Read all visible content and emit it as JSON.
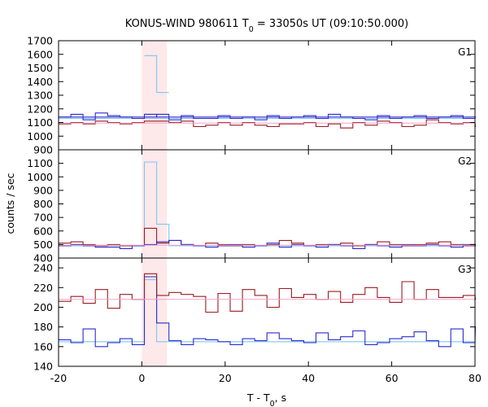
{
  "chart_data": {
    "type": "line",
    "title": "KONUS-WIND 980611 T",
    "title_sub": "0",
    "title_rest": " = 33050s UT (09:10:50.000)",
    "xlabel": "T - T",
    "xlabel_sub": "0",
    "xlabel_rest": ", s",
    "ylabel": "counts / sec",
    "xlim": [
      -20,
      80
    ],
    "x_ticks": [
      -20,
      0,
      20,
      40,
      60,
      80
    ],
    "bin_width": 2.944,
    "highlight": {
      "start": 0,
      "end": 6
    },
    "colors": {
      "dark_red": "#9b1b22",
      "blue": "#2b2bd0",
      "light_blue": "#7fc8ee",
      "pink": "#f7a1c4",
      "highlight": "#fde8ea"
    },
    "panels": [
      {
        "label": "G1",
        "ylim": [
          900,
          1700
        ],
        "y_ticks": [
          900,
          1000,
          1100,
          1200,
          1300,
          1400,
          1500,
          1600,
          1700
        ],
        "series": [
          {
            "color": "light_blue",
            "values": [
              1130,
              1130,
              1130,
              1130,
              1130,
              1130,
              1130,
              1130,
              1130,
              1130,
              1130,
              1130,
              1130,
              1130,
              1130,
              1130,
              1130,
              1130,
              1130,
              1130,
              1130,
              1130,
              1130,
              1130,
              1130,
              1130,
              1130,
              1130,
              1130,
              1130,
              1130,
              1130,
              1130,
              1130,
              1130
            ]
          },
          {
            "color": "blue",
            "values": [
              1140,
              1160,
              1120,
              1170,
              1150,
              1140,
              1130,
              1160,
              1140,
              1120,
              1140,
              1130,
              1130,
              1150,
              1130,
              1140,
              1120,
              1150,
              1130,
              1140,
              1150,
              1130,
              1160,
              1140,
              1130,
              1120,
              1150,
              1130,
              1140,
              1150,
              1130,
              1140,
              1150,
              1130,
              1140
            ]
          },
          {
            "color": "dark_red",
            "values": [
              1090,
              1100,
              1090,
              1110,
              1100,
              1090,
              1100,
              1110,
              1110,
              1100,
              1110,
              1070,
              1080,
              1100,
              1080,
              1100,
              1080,
              1070,
              1090,
              1090,
              1100,
              1070,
              1090,
              1060,
              1100,
              1080,
              1110,
              1100,
              1070,
              1080,
              1120,
              1100,
              1090,
              1100,
              1070
            ]
          },
          {
            "color": "blue",
            "values": [
              1140,
              1140,
              1140,
              1140,
              1140,
              1140,
              1140,
              1140,
              1160,
              1140,
              1150,
              1140,
              1140,
              1140,
              1140,
              1140,
              1140,
              1140,
              1140,
              1140,
              1140,
              1140,
              1140,
              1140,
              1140,
              1140,
              1140,
              1140,
              1140,
              1140,
              1140,
              1140,
              1140,
              1140,
              1140
            ]
          },
          {
            "color": "light_blue",
            "values": [
              null,
              null,
              null,
              null,
              null,
              null,
              null,
              1590,
              1320,
              null,
              null,
              null,
              null,
              null,
              null,
              null,
              null,
              null,
              null,
              null,
              null,
              null,
              null,
              null,
              null,
              null,
              null,
              null,
              null,
              null,
              null,
              null,
              null,
              null,
              null
            ]
          },
          {
            "color": "pink",
            "values": [
              1095,
              1095,
              1095,
              1095,
              1095,
              1095,
              1095,
              1095,
              1095,
              1095,
              1095,
              1095,
              1095,
              1095,
              1095,
              1095,
              1095,
              1095,
              1095,
              1095,
              1095,
              1095,
              1095,
              1095,
              1095,
              1095,
              1095,
              1095,
              1095,
              1095,
              1095,
              1095,
              1095,
              1095,
              1095
            ]
          }
        ]
      },
      {
        "label": "G2",
        "ylim": [
          400,
          1200
        ],
        "y_ticks": [
          400,
          500,
          600,
          700,
          800,
          900,
          1000,
          1100
        ],
        "series": [
          {
            "color": "light_blue",
            "values": [
              490,
              490,
              490,
              490,
              490,
              490,
              490,
              1110,
              650,
              490,
              490,
              490,
              490,
              490,
              490,
              490,
              490,
              490,
              490,
              490,
              490,
              490,
              490,
              490,
              490,
              490,
              490,
              490,
              490,
              490,
              490,
              490,
              490,
              490,
              490
            ]
          },
          {
            "color": "dark_red",
            "values": [
              510,
              520,
              500,
              490,
              500,
              490,
              490,
              620,
              510,
              530,
              500,
              490,
              510,
              500,
              490,
              500,
              490,
              500,
              530,
              510,
              490,
              500,
              500,
              510,
              490,
              500,
              520,
              500,
              490,
              500,
              510,
              520,
              500,
              490,
              500
            ]
          },
          {
            "color": "blue",
            "values": [
              490,
              500,
              490,
              480,
              480,
              470,
              490,
              500,
              520,
              530,
              500,
              490,
              480,
              490,
              500,
              480,
              490,
              510,
              480,
              500,
              490,
              480,
              500,
              490,
              470,
              500,
              490,
              480,
              500,
              490,
              500,
              490,
              480,
              500,
              490
            ]
          },
          {
            "color": "pink",
            "values": [
              495,
              495,
              495,
              495,
              495,
              495,
              495,
              495,
              495,
              495,
              495,
              495,
              495,
              495,
              495,
              495,
              495,
              495,
              495,
              495,
              495,
              495,
              495,
              495,
              495,
              495,
              495,
              495,
              495,
              495,
              495,
              495,
              495,
              495,
              495
            ]
          }
        ]
      },
      {
        "label": "G3",
        "ylim": [
          140,
          250
        ],
        "y_ticks": [
          140,
          160,
          180,
          200,
          220,
          240
        ],
        "series": [
          {
            "color": "light_blue",
            "values": [
              165,
              165,
              165,
              165,
              165,
              165,
              165,
              228,
              165,
              165,
              165,
              165,
              165,
              165,
              165,
              165,
              165,
              165,
              165,
              165,
              165,
              165,
              165,
              165,
              165,
              165,
              165,
              165,
              165,
              165,
              165,
              165,
              165,
              165,
              165
            ]
          },
          {
            "color": "blue",
            "values": [
              167,
              164,
              178,
              160,
              164,
              168,
              162,
              231,
              184,
              166,
              162,
              168,
              167,
              165,
              162,
              168,
              166,
              174,
              168,
              166,
              164,
              174,
              167,
              170,
              176,
              162,
              164,
              168,
              170,
              175,
              166,
              160,
              178,
              164,
              180
            ]
          },
          {
            "color": "dark_red",
            "values": [
              206,
              211,
              204,
              218,
              199,
              213,
              208,
              234,
              212,
              215,
              213,
              211,
              195,
              214,
              196,
              218,
              212,
              200,
              219,
              210,
              213,
              208,
              216,
              205,
              213,
              220,
              210,
              205,
              226,
              208,
              218,
              210,
              210,
              212,
              208
            ]
          },
          {
            "color": "pink",
            "values": [
              208,
              208,
              208,
              208,
              208,
              208,
              208,
              208,
              208,
              208,
              208,
              208,
              208,
              208,
              208,
              208,
              208,
              208,
              208,
              208,
              208,
              208,
              208,
              208,
              208,
              208,
              208,
              208,
              208,
              208,
              208,
              208,
              208,
              208,
              208
            ]
          }
        ]
      }
    ]
  }
}
